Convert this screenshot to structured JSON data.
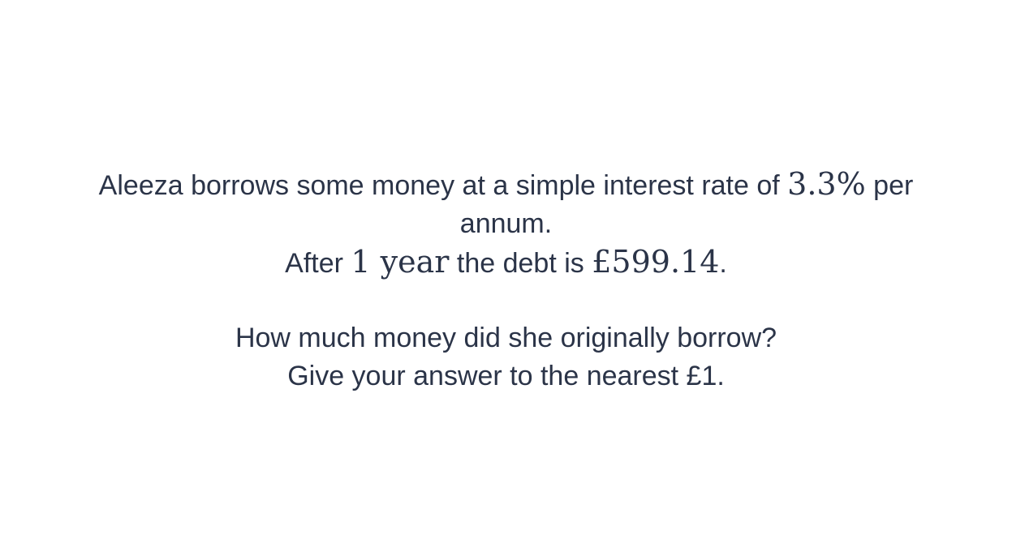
{
  "question": {
    "line1": {
      "before": "Aleeza borrows some money at a simple interest rate of ",
      "rate": "3.3%",
      "after": " per"
    },
    "line2": "annum.",
    "line3": {
      "before": "After ",
      "years": "1 year",
      "middle": " the debt is ",
      "debt": "£599.14",
      "after": "."
    },
    "line4": "How much money did she originally borrow?",
    "line5": "Give your answer to the nearest £1."
  }
}
